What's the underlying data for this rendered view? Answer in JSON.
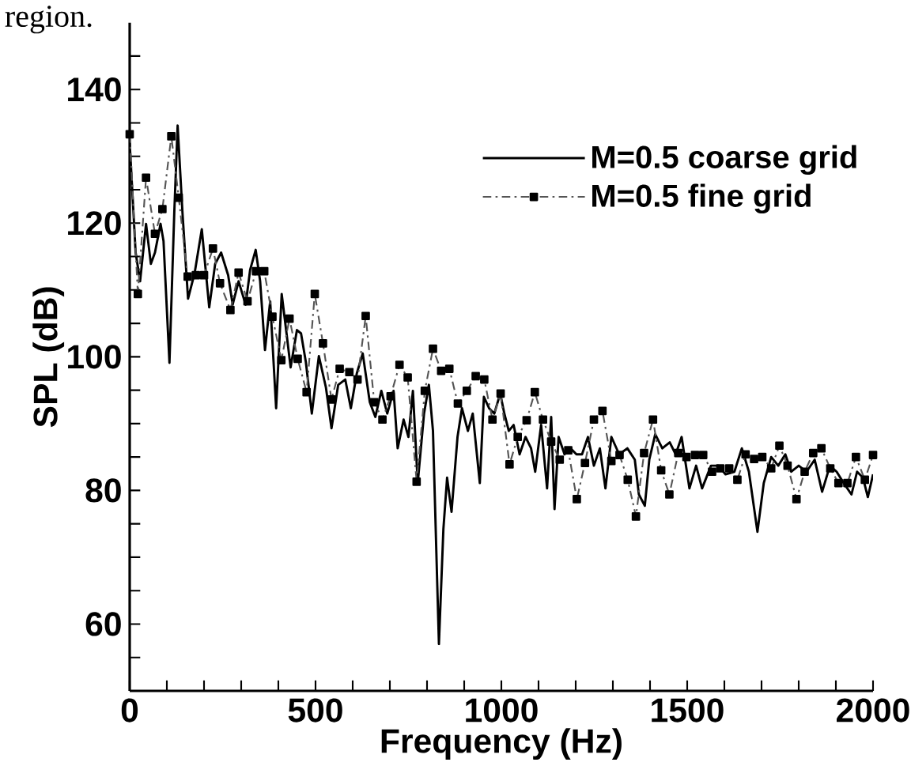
{
  "chart_data": {
    "type": "line",
    "xlabel": "Frequency (Hz)",
    "ylabel": "SPL (dB)",
    "annotations": [
      "region."
    ],
    "xlim": [
      0,
      2000
    ],
    "ylim": [
      50,
      150
    ],
    "xticks": [
      0,
      {
        "value": 100,
        "label": null
      },
      {
        "value": 200,
        "label": null
      },
      {
        "value": 300,
        "label": null
      },
      {
        "value": 400,
        "label": null
      },
      500,
      {
        "value": 600,
        "label": null
      },
      {
        "value": 700,
        "label": null
      },
      {
        "value": 800,
        "label": null
      },
      {
        "value": 900,
        "label": null
      },
      1000,
      {
        "value": 1100,
        "label": null
      },
      {
        "value": 1200,
        "label": null
      },
      {
        "value": 1300,
        "label": null
      },
      {
        "value": 1400,
        "label": null
      },
      1500,
      {
        "value": 1600,
        "label": null
      },
      {
        "value": 1700,
        "label": null
      },
      {
        "value": 1800,
        "label": null
      },
      {
        "value": 1900,
        "label": null
      },
      2000
    ],
    "yticks": [
      {
        "value": 55,
        "label": null
      },
      60,
      {
        "value": 65,
        "label": null
      },
      {
        "value": 70,
        "label": null
      },
      {
        "value": 75,
        "label": null
      },
      80,
      {
        "value": 85,
        "label": null
      },
      {
        "value": 90,
        "label": null
      },
      {
        "value": 95,
        "label": null
      },
      100,
      {
        "value": 105,
        "label": null
      },
      {
        "value": 110,
        "label": null
      },
      {
        "value": 115,
        "label": null
      },
      120,
      {
        "value": 125,
        "label": null
      },
      {
        "value": 130,
        "label": null
      },
      {
        "value": 135,
        "label": null
      },
      140,
      {
        "value": 145,
        "label": null
      }
    ],
    "legend": "top right",
    "grid": false,
    "series": [
      {
        "name": "M=0.5 coarse grid",
        "color": "#000000",
        "marker": "none",
        "line_style": "solid",
        "x": [
          0,
          16,
          28,
          44,
          57,
          68,
          83,
          91,
          107,
          120,
          129,
          142,
          157,
          175,
          194,
          214,
          230,
          246,
          265,
          277,
          293,
          312,
          324,
          339,
          351,
          364,
          378,
          394,
          409,
          422,
          433,
          450,
          461,
          474,
          490,
          509,
          528,
          543,
          561,
          580,
          595,
          611,
          627,
          646,
          661,
          677,
          693,
          710,
          721,
          737,
          750,
          762,
          775,
          792,
          805,
          816,
          832,
          844,
          854,
          866,
          882,
          894,
          910,
          923,
          942,
          953,
          967,
          981,
          997,
          1008,
          1020,
          1033,
          1049,
          1065,
          1080,
          1091,
          1107,
          1123,
          1134,
          1143,
          1154,
          1170,
          1186,
          1202,
          1217,
          1233,
          1249,
          1265,
          1280,
          1296,
          1317,
          1339,
          1359,
          1370,
          1386,
          1398,
          1414,
          1433,
          1453,
          1469,
          1485,
          1506,
          1524,
          1540,
          1564,
          1584,
          1603,
          1627,
          1647,
          1666,
          1689,
          1706,
          1726,
          1745,
          1764,
          1780,
          1800,
          1821,
          1843,
          1863,
          1884,
          1902,
          1921,
          1942,
          1957,
          1973,
          1986,
          2000
        ],
        "values": [
          132,
          115.6,
          111.3,
          119.9,
          113.9,
          115.6,
          119.9,
          117.3,
          99.1,
          121.6,
          134.6,
          121.6,
          108.7,
          112.6,
          119.1,
          107.4,
          113.9,
          115.6,
          112.2,
          107.8,
          111.3,
          107.8,
          113,
          116,
          111.3,
          101,
          108.3,
          92.3,
          109.4,
          103.5,
          98.4,
          104,
          103.5,
          99.2,
          91.5,
          100.1,
          95.4,
          89.3,
          95.8,
          96.6,
          92.3,
          97.5,
          100.5,
          93.2,
          91,
          94.9,
          91.5,
          94.9,
          86.3,
          90.6,
          88,
          94.9,
          81.1,
          91.5,
          95.8,
          88.9,
          57,
          74.2,
          81.9,
          76.8,
          88,
          92.3,
          88.9,
          91.5,
          81.1,
          94,
          92.3,
          91.5,
          94.5,
          91.5,
          88.9,
          89.8,
          85.4,
          88,
          86.3,
          82.8,
          89.8,
          80.3,
          91,
          77.2,
          88,
          85.4,
          86.3,
          85.4,
          85.4,
          88,
          83.7,
          86.3,
          80.3,
          88,
          85.4,
          86.3,
          84.6,
          79.4,
          77.7,
          84.6,
          88.4,
          86.3,
          87.2,
          85.4,
          88,
          80.3,
          83.7,
          80.3,
          83.7,
          83.7,
          82.4,
          82.8,
          86.3,
          82.8,
          73.8,
          81.1,
          85,
          83.7,
          85.4,
          82.8,
          83.7,
          82.8,
          84.6,
          79.8,
          83.7,
          82.8,
          81.1,
          79.4,
          82.8,
          81.9,
          79,
          82.4
        ]
      },
      {
        "name": "M=0.5 fine grid",
        "color": "#555555",
        "marker": "square",
        "line_style": "dashdotted",
        "x": [
          0,
          22,
          44,
          68,
          88,
          112,
          132,
          156,
          178,
          200,
          224,
          243,
          271,
          293,
          317,
          340,
          362,
          384,
          408,
          430,
          452,
          476,
          498,
          520,
          543,
          565,
          591,
          613,
          635,
          658,
          680,
          702,
          726,
          748,
          772,
          794,
          816,
          838,
          860,
          883,
          907,
          931,
          954,
          976,
          998,
          1022,
          1044,
          1068,
          1090,
          1112,
          1134,
          1157,
          1180,
          1203,
          1225,
          1249,
          1272,
          1296,
          1318,
          1340,
          1362,
          1384,
          1408,
          1430,
          1452,
          1476,
          1498,
          1521,
          1543,
          1567,
          1589,
          1613,
          1635,
          1657,
          1680,
          1702,
          1726,
          1748,
          1770,
          1794,
          1816,
          1839,
          1861,
          1885,
          1907,
          1931,
          1954,
          1978,
          2000
        ],
        "values": [
          133.3,
          109.4,
          126.8,
          118.4,
          122.1,
          133,
          123.8,
          112,
          112.2,
          112.2,
          116.2,
          111,
          107,
          112.6,
          108.3,
          112.8,
          112.8,
          106,
          99.5,
          105.7,
          99.7,
          94.7,
          109.4,
          102,
          93.6,
          98.2,
          97.7,
          96.6,
          106.1,
          93.2,
          90.6,
          94.1,
          98.8,
          96.9,
          81.3,
          94.9,
          101.2,
          97.9,
          98.2,
          93,
          94.9,
          97.1,
          96.6,
          90.6,
          94.5,
          83.9,
          88,
          90.5,
          94.7,
          90.6,
          87.3,
          84.6,
          86,
          78.7,
          84.1,
          90.6,
          91.9,
          84.4,
          85.3,
          81.6,
          76.1,
          85.6,
          90.6,
          83,
          79.4,
          85.6,
          85,
          85.3,
          85.3,
          82.8,
          83.3,
          83.3,
          81.6,
          85.4,
          84.7,
          85,
          83.3,
          86.7,
          83.7,
          78.7,
          82.8,
          85.6,
          86.3,
          83.3,
          81.1,
          81.1,
          85,
          81.6,
          85.3
        ]
      }
    ]
  }
}
